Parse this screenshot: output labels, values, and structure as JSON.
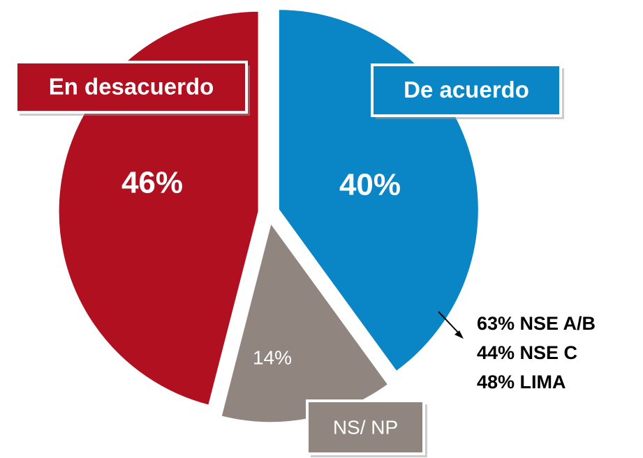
{
  "chart_data": {
    "type": "pie",
    "categories": [
      "De acuerdo",
      "NS/ NP",
      "En desacuerdo"
    ],
    "values": [
      40,
      14,
      46
    ],
    "value_labels": [
      "40%",
      "14%",
      "46%"
    ],
    "colors": [
      "#0a85c6",
      "#918580",
      "#b01020"
    ],
    "annotations": [
      "63% NSE A/B",
      "44% NSE C",
      "48% LIMA"
    ]
  }
}
